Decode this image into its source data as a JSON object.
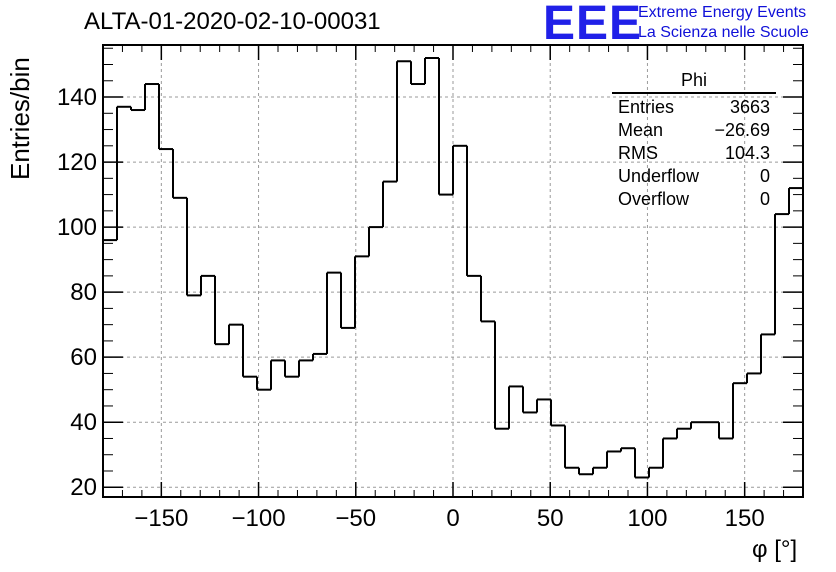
{
  "title": "ALTA-01-2020-02-10-00031",
  "logo": {
    "text": "EEE",
    "line1": "Extreme Energy Events",
    "line2": "La Scienza nelle Scuole",
    "color": "#2020e8"
  },
  "stats_box": {
    "title": "Phi",
    "rows": [
      {
        "label": "Entries",
        "value": "3663"
      },
      {
        "label": "Mean",
        "value": "−26.69"
      },
      {
        "label": "RMS",
        "value": "104.3"
      },
      {
        "label": "Underflow",
        "value": "0"
      },
      {
        "label": "Overflow",
        "value": "0"
      }
    ]
  },
  "chart_data": {
    "type": "bar",
    "histogram_style": "step",
    "title": "ALTA-01-2020-02-10-00031",
    "xlabel": "φ [°]",
    "ylabel": "Entries/bin",
    "xlim": [
      -180,
      180
    ],
    "ylim": [
      17,
      156
    ],
    "grid": true,
    "bin_edges": [
      -180,
      -172.8,
      -165.6,
      -158.4,
      -151.2,
      -144,
      -136.8,
      -129.6,
      -122.4,
      -115.2,
      -108,
      -100.8,
      -93.6,
      -86.4,
      -79.2,
      -72,
      -64.8,
      -57.6,
      -50.4,
      -43.2,
      -36,
      -28.8,
      -21.6,
      -14.4,
      -7.2,
      0,
      7.2,
      14.4,
      21.6,
      28.8,
      36,
      43.2,
      50.4,
      57.6,
      64.8,
      72,
      79.2,
      86.4,
      93.6,
      100.8,
      108,
      115.2,
      122.4,
      129.6,
      136.8,
      144,
      151.2,
      158.4,
      165.6,
      172.8,
      180
    ],
    "values": [
      96,
      137,
      136,
      144,
      124,
      109,
      79,
      85,
      64,
      70,
      54,
      50,
      59,
      54,
      59,
      61,
      86,
      69,
      91,
      100,
      114,
      151,
      144,
      152,
      110,
      125,
      85,
      71,
      38,
      51,
      43,
      47,
      39,
      26,
      24,
      26,
      31,
      32,
      23,
      26,
      35,
      38,
      40,
      40,
      35,
      52,
      55,
      67,
      104,
      112
    ],
    "xticks": [
      -150,
      -100,
      -50,
      0,
      50,
      100,
      150
    ],
    "xtick_labels": [
      "−150",
      "−100",
      "−50",
      "0",
      "50",
      "100",
      "150"
    ],
    "yticks": [
      20,
      40,
      60,
      80,
      100,
      120,
      140
    ],
    "ytick_labels": [
      "20",
      "40",
      "60",
      "80",
      "100",
      "120",
      "140"
    ]
  }
}
